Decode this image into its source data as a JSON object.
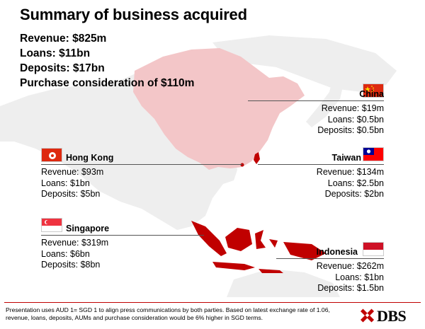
{
  "title": "Summary of business acquired",
  "summary": {
    "revenue": "Revenue: $825m",
    "loans": "Loans: $11bn",
    "deposits": "Deposits: $17bn",
    "purchase": "Purchase consideration of $110m"
  },
  "regions": {
    "china": {
      "name": "China",
      "revenue": "Revenue: $19m",
      "loans": "Loans: $0.5bn",
      "deposits": "Deposits: $0.5bn"
    },
    "hong_kong": {
      "name": "Hong Kong",
      "revenue": "Revenue: $93m",
      "loans": "Loans: $1bn",
      "deposits": "Deposits: $5bn"
    },
    "taiwan": {
      "name": "Taiwan",
      "revenue": "Revenue: $134m",
      "loans": "Loans: $2.5bn",
      "deposits": "Deposits: $2bn"
    },
    "singapore": {
      "name": "Singapore",
      "revenue": "Revenue: $319m",
      "loans": "Loans: $6bn",
      "deposits": "Deposits: $8bn"
    },
    "indonesia": {
      "name": "Indonesia",
      "revenue": "Revenue: $262m",
      "loans": "Loans: $1bn",
      "deposits": "Deposits: $1.5bn"
    }
  },
  "footer": {
    "note": "Presentation uses AUD 1= SGD 1 to align press communications by both parties. Based on latest exchange rate of 1.06, revenue, loans, deposits, AUMs and purchase consideration would be 6% higher in SGD terms."
  },
  "logo": {
    "text": "DBS"
  },
  "colors": {
    "accent": "#c00000",
    "china_fill": "#f3c6c8",
    "land_fill": "#eeeeee",
    "indonesia_fill": "#c00000"
  }
}
